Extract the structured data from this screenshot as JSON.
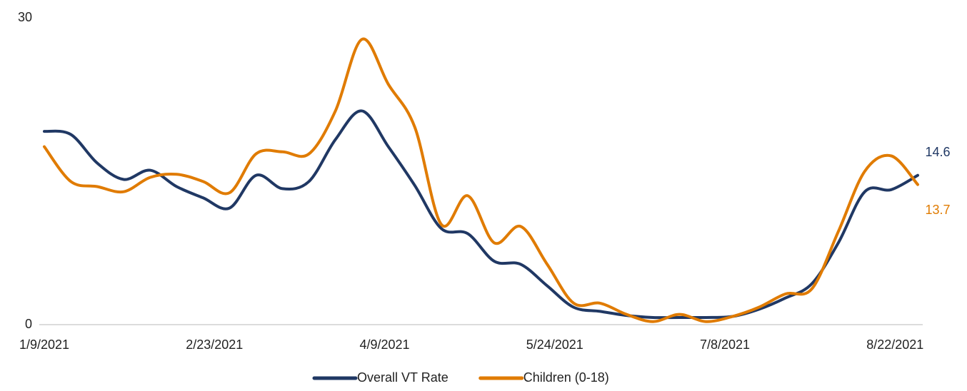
{
  "chart_data": {
    "type": "line",
    "x": [
      "1/9/2021",
      "1/16/2021",
      "1/23/2021",
      "1/30/2021",
      "2/6/2021",
      "2/13/2021",
      "2/20/2021",
      "2/27/2021",
      "3/6/2021",
      "3/13/2021",
      "3/20/2021",
      "3/27/2021",
      "4/3/2021",
      "4/10/2021",
      "4/17/2021",
      "4/24/2021",
      "5/1/2021",
      "5/8/2021",
      "5/15/2021",
      "5/22/2021",
      "5/29/2021",
      "6/5/2021",
      "6/12/2021",
      "6/19/2021",
      "6/26/2021",
      "7/3/2021",
      "7/10/2021",
      "7/17/2021",
      "7/24/2021",
      "7/31/2021",
      "8/7/2021",
      "8/14/2021",
      "8/21/2021",
      "8/28/2021"
    ],
    "series": [
      {
        "name": "Overall VT Rate",
        "color": "#203864",
        "values": [
          18.9,
          18.6,
          15.8,
          14.2,
          15.1,
          13.5,
          12.4,
          11.4,
          14.6,
          13.3,
          14.0,
          18.1,
          20.9,
          17.4,
          13.6,
          9.4,
          8.9,
          6.2,
          5.9,
          3.8,
          1.7,
          1.3,
          0.9,
          0.7,
          0.7,
          0.7,
          0.8,
          1.5,
          2.6,
          4.0,
          8.0,
          13.0,
          13.2,
          14.6
        ]
      },
      {
        "name": "Children (0-18)",
        "color": "#e07b00",
        "values": [
          17.4,
          14.0,
          13.5,
          13.0,
          14.4,
          14.7,
          14.0,
          12.9,
          16.7,
          16.9,
          16.7,
          20.9,
          27.9,
          23.5,
          19.3,
          9.8,
          12.6,
          8.0,
          9.6,
          5.9,
          2.1,
          2.1,
          1.0,
          0.3,
          1.0,
          0.3,
          0.8,
          1.7,
          3.0,
          3.5,
          9.1,
          15.0,
          16.5,
          13.7
        ]
      }
    ],
    "xlim": [
      "1/9/2021",
      "8/28/2021"
    ],
    "xticks": [
      "1/9/2021",
      "2/23/2021",
      "4/9/2021",
      "5/24/2021",
      "7/8/2021",
      "8/22/2021"
    ],
    "ylim": [
      0,
      30
    ],
    "yticks": [
      0,
      30
    ],
    "grid": false,
    "legend": "bottom"
  }
}
